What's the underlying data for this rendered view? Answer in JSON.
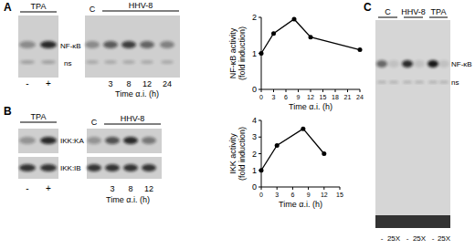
{
  "chart_data": [
    {
      "type": "line",
      "x": [
        0,
        3,
        8,
        12,
        24
      ],
      "values": [
        1,
        1.55,
        1.95,
        1.45,
        1.1
      ],
      "xlim": [
        0,
        24
      ],
      "xticks": [
        0,
        3,
        6,
        9,
        12,
        15,
        18,
        21,
        24
      ],
      "ylim": [
        0,
        2
      ],
      "yticks": [
        0,
        1,
        2
      ],
      "ylabel": [
        "NF-κB activity",
        "(fold induction)"
      ],
      "xlabel": "Time α.i. (h)",
      "color": "#000000",
      "marker": "circle",
      "line_style": "solid"
    },
    {
      "type": "line",
      "x": [
        0,
        3,
        8,
        12
      ],
      "values": [
        1,
        2.5,
        3.5,
        2
      ],
      "xlim": [
        0,
        15
      ],
      "xticks": [
        0,
        3,
        6,
        9,
        12,
        15
      ],
      "ylim": [
        0,
        4
      ],
      "yticks": [
        0,
        1,
        2,
        3,
        4
      ],
      "ylabel": [
        "IKK activity",
        "(fold induction)"
      ],
      "xlabel": "Time α.i. (h)",
      "color": "#000000",
      "marker": "circle",
      "line_style": "solid"
    }
  ],
  "panels": {
    "A": {
      "letter": "A",
      "tpa_header": "TPA",
      "tpa_lanes": [
        "-",
        "+"
      ],
      "control": "C",
      "hhv_header": "HHV-8",
      "hhv_lanes": [
        "3",
        "8",
        "12",
        "24"
      ],
      "time_label": "Time α.i. (h)",
      "bands": [
        "NF-κB",
        "ns"
      ]
    },
    "B": {
      "letter": "B",
      "tpa_header": "TPA",
      "tpa_lanes": [
        "-",
        "+"
      ],
      "control": "C",
      "hhv_header": "HHV-8",
      "hhv_lanes": [
        "3",
        "8",
        "12"
      ],
      "time_label": "Time α.i. (h)",
      "rows": [
        "IKK:KA",
        "IKK:IB"
      ]
    },
    "C": {
      "letter": "C",
      "groups": [
        "C",
        "HHV-8",
        "TPA"
      ],
      "lanes": [
        "-",
        "25X",
        "-",
        "25X",
        "-",
        "25X"
      ],
      "bands": [
        "NF-κB",
        "ns"
      ]
    }
  }
}
